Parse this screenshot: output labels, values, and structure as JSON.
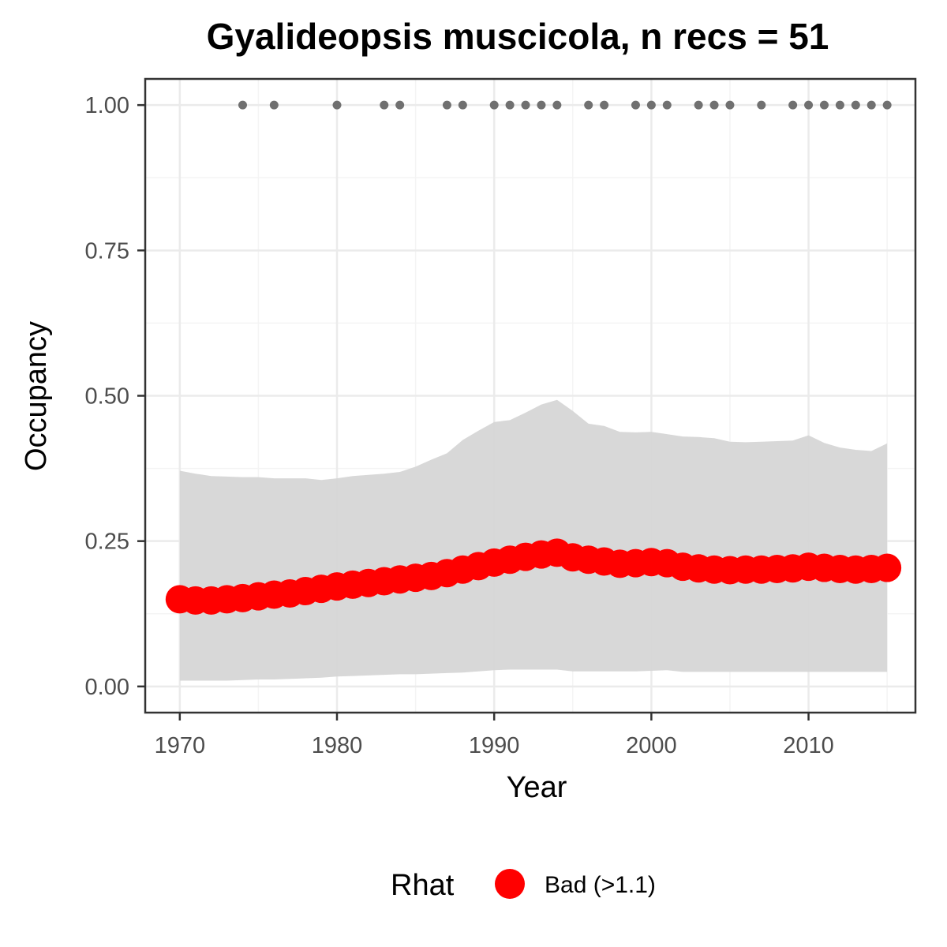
{
  "colors": {
    "estimate": "#ff0000",
    "ribbon": "#d6d6d6",
    "records": "#707070",
    "grid_major": "#ebebeb",
    "grid_minor": "#f4f4f4",
    "panel_border": "#333333",
    "tick_text": "#4d4d4d"
  },
  "chart_data": {
    "type": "line",
    "title": "Gyalideopsis muscicola, n recs = 51",
    "xlabel": "Year",
    "ylabel": "Occupancy",
    "xlim": [
      1967.8,
      2016.8
    ],
    "ylim": [
      -0.045,
      1.045
    ],
    "x_ticks": [
      1970,
      1980,
      1990,
      2000,
      2010
    ],
    "x_tick_labels": [
      "1970",
      "1980",
      "1990",
      "2000",
      "2010"
    ],
    "y_ticks": [
      0,
      0.25,
      0.5,
      0.75,
      1
    ],
    "y_tick_labels": [
      "0.00",
      "0.25",
      "0.50",
      "0.75",
      "1.00"
    ],
    "grid": true,
    "legend": {
      "position": "bottom",
      "title": "Rhat",
      "entries": [
        {
          "label": "Bad (>1.1)",
          "color": "#ff0000"
        }
      ]
    },
    "series": [
      {
        "name": "Bad (>1.1)",
        "x": [
          1970,
          1971,
          1972,
          1973,
          1974,
          1975,
          1976,
          1977,
          1978,
          1979,
          1980,
          1981,
          1982,
          1983,
          1984,
          1985,
          1986,
          1987,
          1988,
          1989,
          1990,
          1991,
          1992,
          1993,
          1994,
          1995,
          1996,
          1997,
          1998,
          1999,
          2000,
          2001,
          2002,
          2003,
          2004,
          2005,
          2006,
          2007,
          2008,
          2009,
          2010,
          2011,
          2012,
          2013,
          2014,
          2015
        ],
        "y": [
          0.15,
          0.148,
          0.148,
          0.15,
          0.152,
          0.155,
          0.158,
          0.16,
          0.164,
          0.168,
          0.172,
          0.175,
          0.178,
          0.181,
          0.184,
          0.187,
          0.19,
          0.195,
          0.201,
          0.207,
          0.213,
          0.218,
          0.223,
          0.227,
          0.23,
          0.222,
          0.218,
          0.215,
          0.211,
          0.212,
          0.214,
          0.212,
          0.206,
          0.203,
          0.201,
          0.2,
          0.201,
          0.201,
          0.202,
          0.203,
          0.206,
          0.204,
          0.202,
          0.201,
          0.202,
          0.204
        ]
      }
    ],
    "interval": {
      "x": [
        1970,
        1971,
        1972,
        1973,
        1974,
        1975,
        1976,
        1977,
        1978,
        1979,
        1980,
        1981,
        1982,
        1983,
        1984,
        1985,
        1986,
        1987,
        1988,
        1989,
        1990,
        1991,
        1992,
        1993,
        1994,
        1995,
        1996,
        1997,
        1998,
        1999,
        2000,
        2001,
        2002,
        2003,
        2004,
        2005,
        2006,
        2007,
        2008,
        2009,
        2010,
        2011,
        2012,
        2013,
        2014,
        2015
      ],
      "lower": [
        0.01,
        0.01,
        0.01,
        0.01,
        0.011,
        0.012,
        0.012,
        0.013,
        0.014,
        0.015,
        0.017,
        0.018,
        0.019,
        0.02,
        0.021,
        0.021,
        0.022,
        0.023,
        0.024,
        0.026,
        0.028,
        0.029,
        0.029,
        0.029,
        0.029,
        0.026,
        0.026,
        0.026,
        0.026,
        0.026,
        0.027,
        0.028,
        0.025,
        0.025,
        0.025,
        0.025,
        0.025,
        0.025,
        0.025,
        0.025,
        0.025,
        0.025,
        0.025,
        0.025,
        0.025,
        0.025
      ],
      "upper": [
        0.371,
        0.366,
        0.362,
        0.361,
        0.36,
        0.36,
        0.358,
        0.358,
        0.358,
        0.355,
        0.358,
        0.362,
        0.364,
        0.366,
        0.369,
        0.378,
        0.39,
        0.401,
        0.424,
        0.44,
        0.455,
        0.458,
        0.471,
        0.485,
        0.493,
        0.474,
        0.452,
        0.448,
        0.438,
        0.437,
        0.438,
        0.434,
        0.43,
        0.429,
        0.427,
        0.421,
        0.42,
        0.421,
        0.422,
        0.423,
        0.432,
        0.419,
        0.411,
        0.407,
        0.405,
        0.418
      ]
    },
    "records": {
      "x": [
        1974,
        1976,
        1980,
        1983,
        1984,
        1987,
        1988,
        1990,
        1991,
        1992,
        1993,
        1994,
        1996,
        1997,
        1999,
        2000,
        2001,
        2003,
        2004,
        2005,
        2007,
        2009,
        2010,
        2011,
        2012,
        2013,
        2014,
        2015
      ],
      "y": 1
    }
  }
}
